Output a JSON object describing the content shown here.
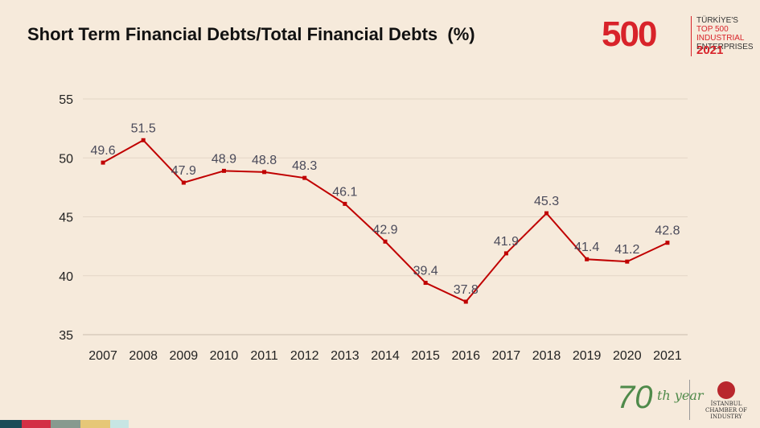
{
  "title": "Short Term Financial Debts/Total Financial Debts  (%)",
  "colors": {
    "background": "#f6eadb",
    "line": "#c00000",
    "grid": "#e3d6c6",
    "brand_red": "#d8232a",
    "brand_green": "#4f8a4a",
    "stripes": [
      "#1b4b57",
      "#d32f45",
      "#879a8f",
      "#e6c777",
      "#c7e5e3"
    ]
  },
  "logo_top": {
    "mark": "500",
    "lines": [
      "TÜRKİYE'S",
      "TOP 500 INDUSTRIAL",
      "ENTERPRISES"
    ],
    "year": "2021"
  },
  "logo_bottom": {
    "mark": "70",
    "sub": "th year",
    "org": "İSTANBUL CHAMBER OF INDUSTRY"
  },
  "chart_data": {
    "type": "line",
    "title": "Short Term Financial Debts/Total Financial Debts  (%)",
    "xlabel": "",
    "ylabel": "",
    "x": [
      "2007",
      "2008",
      "2009",
      "2010",
      "2011",
      "2012",
      "2013",
      "2014",
      "2015",
      "2016",
      "2017",
      "2018",
      "2019",
      "2020",
      "2021"
    ],
    "series": [
      {
        "values": [
          49.6,
          51.5,
          47.9,
          48.9,
          48.8,
          48.3,
          46.1,
          42.9,
          39.4,
          37.8,
          41.9,
          45.3,
          41.4,
          41.2,
          42.8
        ],
        "labels": [
          "49.6",
          "51.5",
          "47.9",
          "48.9",
          "48.8",
          "48.3",
          "46.1",
          "42.9",
          "39.4",
          "37.8",
          "41.9",
          "45.3",
          "41.4",
          "41.2",
          "42.8"
        ]
      }
    ],
    "ylim": [
      35,
      55
    ],
    "yticks": [
      "35",
      "40",
      "45",
      "50",
      "55"
    ],
    "grid": true,
    "legend": "none"
  }
}
